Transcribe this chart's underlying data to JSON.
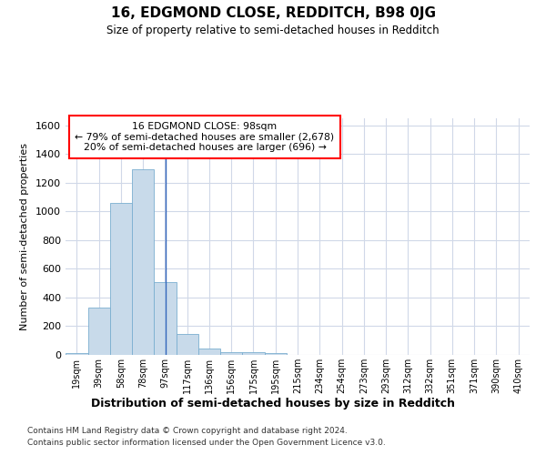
{
  "title": "16, EDGMOND CLOSE, REDDITCH, B98 0JG",
  "subtitle": "Size of property relative to semi-detached houses in Redditch",
  "xlabel": "Distribution of semi-detached houses by size in Redditch",
  "ylabel": "Number of semi-detached properties",
  "footnote1": "Contains HM Land Registry data © Crown copyright and database right 2024.",
  "footnote2": "Contains public sector information licensed under the Open Government Licence v3.0.",
  "property_size": 98,
  "annotation_line1": "16 EDGMOND CLOSE: 98sqm",
  "annotation_line2": "← 79% of semi-detached houses are smaller (2,678)",
  "annotation_line3": "20% of semi-detached houses are larger (696) →",
  "bin_labels": [
    "19sqm",
    "39sqm",
    "58sqm",
    "78sqm",
    "97sqm",
    "117sqm",
    "136sqm",
    "156sqm",
    "175sqm",
    "195sqm",
    "215sqm",
    "234sqm",
    "254sqm",
    "273sqm",
    "293sqm",
    "312sqm",
    "332sqm",
    "351sqm",
    "371sqm",
    "390sqm",
    "410sqm"
  ],
  "bin_edges": [
    9.5,
    29.5,
    48.5,
    68.5,
    87.5,
    107.5,
    126.5,
    146.5,
    165.5,
    185.5,
    204.5,
    224.5,
    243.5,
    263.5,
    282.5,
    302.5,
    321.5,
    341.5,
    360.5,
    380.5,
    399.5,
    419.5
  ],
  "bar_values": [
    15,
    330,
    1060,
    1295,
    510,
    148,
    45,
    22,
    22,
    10,
    0,
    0,
    0,
    0,
    0,
    0,
    0,
    0,
    0,
    0,
    0
  ],
  "bar_color": "#c8daea",
  "bar_edge_color": "#7aaed0",
  "marker_line_color": "#3366bb",
  "ylim": [
    0,
    1650
  ],
  "yticks": [
    0,
    200,
    400,
    600,
    800,
    1000,
    1200,
    1400,
    1600
  ],
  "bg_color": "#ffffff",
  "plot_bg_color": "#ffffff",
  "grid_color": "#d0d8e8",
  "annotation_box_edge": "red"
}
